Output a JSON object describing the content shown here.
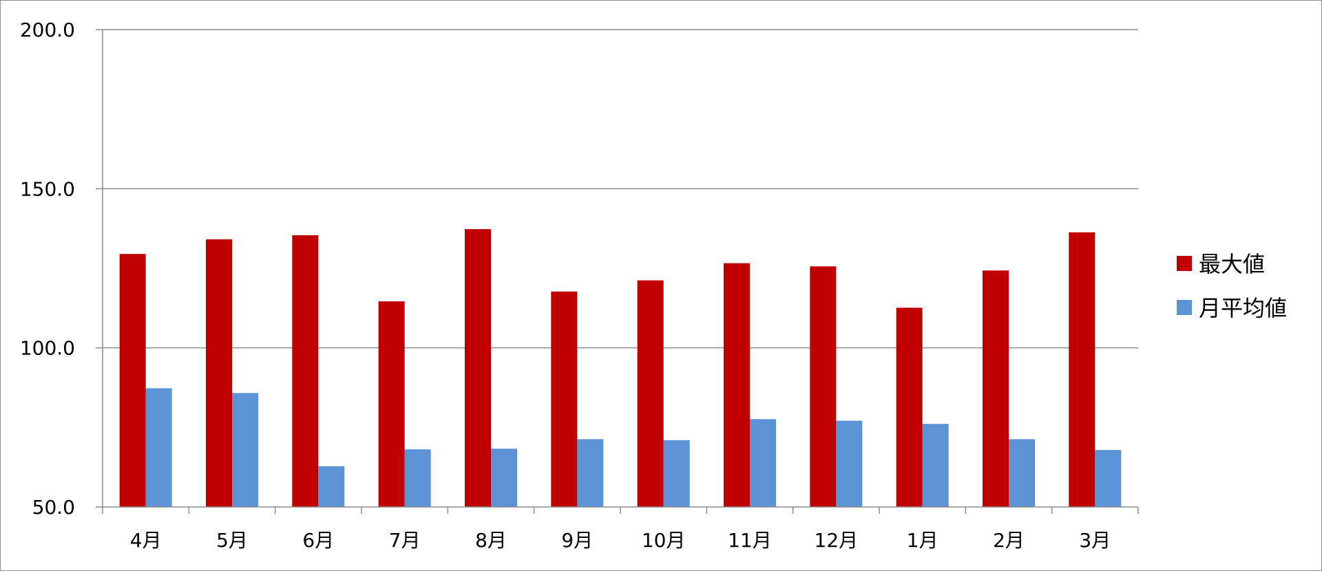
{
  "chart_data": {
    "type": "bar",
    "categories": [
      "4月",
      "5月",
      "6月",
      "7月",
      "8月",
      "9月",
      "10月",
      "11月",
      "12月",
      "1月",
      "2月",
      "3月"
    ],
    "series": [
      {
        "name": "最大値",
        "color": "#c00000",
        "values": [
          129.5,
          134.1,
          135.4,
          114.6,
          137.3,
          117.7,
          121.2,
          126.6,
          125.6,
          112.6,
          124.3,
          136.3
        ]
      },
      {
        "name": "月平均値",
        "color": "#5b93d6",
        "values": [
          87.3,
          85.8,
          62.8,
          68.1,
          68.3,
          71.3,
          71.0,
          77.6,
          77.1,
          76.1,
          71.3,
          67.9
        ]
      }
    ],
    "ylim": [
      50,
      200
    ],
    "yticks": [
      "50.0",
      "100.0",
      "150.0",
      "200.0"
    ],
    "grid": true,
    "legend_position": "right"
  }
}
